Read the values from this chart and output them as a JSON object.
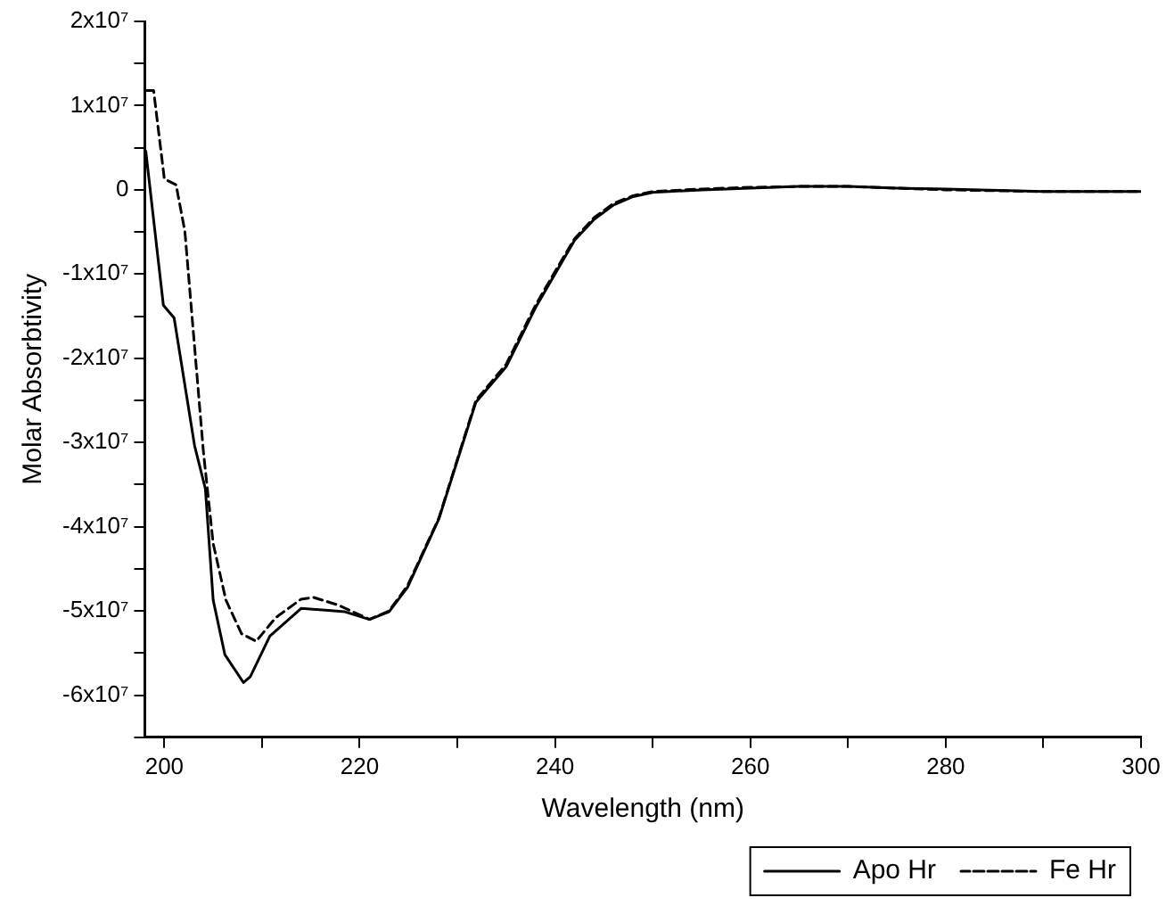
{
  "chart_data": {
    "type": "line",
    "xlabel": "Wavelength (nm)",
    "ylabel": "Molar Absorbtivity",
    "xlim": [
      198,
      300
    ],
    "xticks": [
      200,
      {
        "value": 210,
        "label": null
      },
      220,
      {
        "value": 230,
        "label": null
      },
      240,
      {
        "value": 250,
        "label": null
      },
      260,
      {
        "value": 270,
        "label": null
      },
      280,
      {
        "value": 290,
        "label": null
      },
      300
    ],
    "ylim": [
      -65000000,
      20000000
    ],
    "yticks": [
      {
        "value": -65000000,
        "label": null
      },
      {
        "value": -60000000,
        "label": "-6x10⁷"
      },
      {
        "value": -55000000,
        "label": null
      },
      {
        "value": -50000000,
        "label": "-5x10⁷"
      },
      {
        "value": -45000000,
        "label": null
      },
      {
        "value": -40000000,
        "label": "-4x10⁷"
      },
      {
        "value": -35000000,
        "label": null
      },
      {
        "value": -30000000,
        "label": "-3x10⁷"
      },
      {
        "value": -25000000,
        "label": null
      },
      {
        "value": -20000000,
        "label": "-2x10⁷"
      },
      {
        "value": -15000000,
        "label": null
      },
      {
        "value": -10000000,
        "label": "-1x10⁷"
      },
      {
        "value": -5000000,
        "label": null
      },
      0,
      {
        "value": 5000000,
        "label": null
      },
      {
        "value": 10000000,
        "label": "1x10⁷"
      },
      {
        "value": 15000000,
        "label": null
      },
      {
        "value": 20000000,
        "label": "2x10⁷"
      }
    ],
    "grid": false,
    "legend": "bottom right",
    "marker": "none",
    "series": [
      {
        "name": "Apo Hr",
        "color": "#000000",
        "line_style": "solid",
        "x": [
          198.1,
          199.9,
          201,
          203.1,
          204.2,
          205,
          206.2,
          208.1,
          208.8,
          210.8,
          214,
          216.5,
          218.5,
          221,
          223,
          224.9,
          228.1,
          231.9,
          235,
          238,
          240,
          242,
          244,
          246,
          248,
          250,
          255,
          260,
          265,
          270,
          275,
          280,
          290,
          300
        ],
        "values": [
          4600000,
          -13700000,
          -15200000,
          -30400000,
          -35500000,
          -48700000,
          -55200000,
          -58500000,
          -57800000,
          -53000000,
          -49700000,
          -49900000,
          -50100000,
          -51000000,
          -50100000,
          -47200000,
          -39100000,
          -25200000,
          -21000000,
          -14000000,
          -10000000,
          -6000000,
          -3500000,
          -1800000,
          -800000,
          -300000,
          0,
          200000,
          400000,
          400000,
          200000,
          100000,
          -200000,
          -200000
        ]
      },
      {
        "name": "Fe Hr",
        "color": "#000000",
        "line_style": "dashed",
        "x": [
          198.2,
          198.9,
          200,
          201.2,
          202.1,
          204,
          205,
          206.3,
          207.9,
          209.4,
          211.4,
          214,
          215.3,
          217.8,
          221,
          223,
          224.9,
          228.1,
          231.9,
          235,
          238,
          240,
          242,
          244,
          246,
          248,
          250,
          255,
          260,
          265,
          270,
          275,
          280,
          290,
          300
        ],
        "values": [
          11800000,
          11800000,
          1300000,
          600000,
          -4900000,
          -31100000,
          -42000000,
          -48700000,
          -52700000,
          -53600000,
          -50800000,
          -48600000,
          -48400000,
          -49300000,
          -51000000,
          -50000000,
          -47000000,
          -39000000,
          -25000000,
          -20700000,
          -13700000,
          -9700000,
          -5800000,
          -3300000,
          -1600000,
          -700000,
          -200000,
          100000,
          300000,
          400000,
          400000,
          200000,
          0,
          -200000,
          -200000
        ]
      }
    ]
  }
}
